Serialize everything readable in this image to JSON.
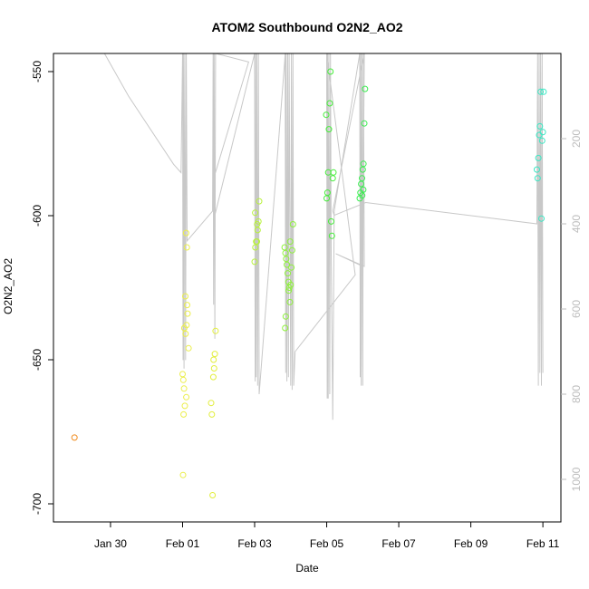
{
  "chart_data": {
    "type": "scatter",
    "title": "ATOM2 Southbound O2N2_AO2",
    "xlabel": "Date",
    "ylabel": "O2N2_AO2",
    "xlim": [
      "2020-01-28T10:00",
      "2020-02-11T12:00"
    ],
    "ylim": [
      -700,
      -550
    ],
    "x_ticks": [
      {
        "value": "2020-01-30",
        "label": "Jan 30"
      },
      {
        "value": "2020-02-01",
        "label": "Feb 01"
      },
      {
        "value": "2020-02-03",
        "label": "Feb 03"
      },
      {
        "value": "2020-02-05",
        "label": "Feb 05"
      },
      {
        "value": "2020-02-07",
        "label": "Feb 07"
      },
      {
        "value": "2020-02-09",
        "label": "Feb 09"
      },
      {
        "value": "2020-02-11",
        "label": "Feb 11"
      }
    ],
    "y_ticks": [
      -700,
      -650,
      -600,
      -550
    ],
    "secondary_axis": {
      "side": "right",
      "reversed": true,
      "lim": [
        0,
        1100
      ],
      "ticks": [
        200,
        400,
        600,
        800,
        1000
      ],
      "color": "#bdbdbd"
    },
    "grid": false,
    "marker": "open-circle",
    "points": [
      {
        "x": "2020-01-29T00:00",
        "y": -677,
        "color": "#f08a1c"
      },
      {
        "x": "2020-02-01T00:00",
        "y": -655,
        "color": "#ebee4a"
      },
      {
        "x": "2020-02-01T00:30",
        "y": -657,
        "color": "#ebee4a"
      },
      {
        "x": "2020-02-01T01:00",
        "y": -660,
        "color": "#ebee4a"
      },
      {
        "x": "2020-02-01T01:30",
        "y": -666,
        "color": "#ebee4a"
      },
      {
        "x": "2020-02-01T00:40",
        "y": -669,
        "color": "#ebee4a"
      },
      {
        "x": "2020-02-01T00:20",
        "y": -690,
        "color": "#ebee4a"
      },
      {
        "x": "2020-02-01T02:00",
        "y": -641,
        "color": "#ebee4a"
      },
      {
        "x": "2020-02-01T02:40",
        "y": -638,
        "color": "#ebee4a"
      },
      {
        "x": "2020-02-01T03:20",
        "y": -634,
        "color": "#ebee4a"
      },
      {
        "x": "2020-02-01T03:00",
        "y": -631,
        "color": "#ebee4a"
      },
      {
        "x": "2020-02-01T01:50",
        "y": -628,
        "color": "#ebee4a"
      },
      {
        "x": "2020-02-01T04:00",
        "y": -646,
        "color": "#ebee4a"
      },
      {
        "x": "2020-02-01T02:20",
        "y": -606,
        "color": "#ebee4a"
      },
      {
        "x": "2020-02-01T02:50",
        "y": -611,
        "color": "#ebee4a"
      },
      {
        "x": "2020-02-01T02:30",
        "y": -663,
        "color": "#ebee4a"
      },
      {
        "x": "2020-02-01T01:10",
        "y": -639,
        "color": "#ebee4a"
      },
      {
        "x": "2020-02-01T19:00",
        "y": -665,
        "color": "#e2ee3c"
      },
      {
        "x": "2020-02-01T19:30",
        "y": -669,
        "color": "#e2ee3c"
      },
      {
        "x": "2020-02-01T20:00",
        "y": -697,
        "color": "#e2ee3c"
      },
      {
        "x": "2020-02-01T20:30",
        "y": -656,
        "color": "#e2ee3c"
      },
      {
        "x": "2020-02-01T21:00",
        "y": -653,
        "color": "#e2ee3c"
      },
      {
        "x": "2020-02-01T21:30",
        "y": -648,
        "color": "#e2ee3c"
      },
      {
        "x": "2020-02-01T20:40",
        "y": -650,
        "color": "#e2ee3c"
      },
      {
        "x": "2020-02-01T22:00",
        "y": -640,
        "color": "#e2ee3c"
      },
      {
        "x": "2020-02-03T00:00",
        "y": -616,
        "color": "#b8f23c"
      },
      {
        "x": "2020-02-03T00:30",
        "y": -611,
        "color": "#b8f23c"
      },
      {
        "x": "2020-02-03T01:00",
        "y": -609,
        "color": "#b8f23c"
      },
      {
        "x": "2020-02-03T01:30",
        "y": -609,
        "color": "#b8f23c"
      },
      {
        "x": "2020-02-03T02:00",
        "y": -605,
        "color": "#b8f23c"
      },
      {
        "x": "2020-02-03T02:30",
        "y": -602,
        "color": "#b8f23c"
      },
      {
        "x": "2020-02-03T03:00",
        "y": -595,
        "color": "#b8f23c"
      },
      {
        "x": "2020-02-03T00:20",
        "y": -599,
        "color": "#b8f23c"
      },
      {
        "x": "2020-02-03T01:40",
        "y": -603,
        "color": "#b8f23c"
      },
      {
        "x": "2020-02-03T20:00",
        "y": -611,
        "color": "#8ef23a"
      },
      {
        "x": "2020-02-03T20:30",
        "y": -613,
        "color": "#8ef23a"
      },
      {
        "x": "2020-02-03T21:00",
        "y": -615,
        "color": "#8ef23a"
      },
      {
        "x": "2020-02-03T21:30",
        "y": -617,
        "color": "#8ef23a"
      },
      {
        "x": "2020-02-03T22:00",
        "y": -620,
        "color": "#8ef23a"
      },
      {
        "x": "2020-02-03T22:30",
        "y": -623,
        "color": "#8ef23a"
      },
      {
        "x": "2020-02-03T23:00",
        "y": -625,
        "color": "#8ef23a"
      },
      {
        "x": "2020-02-03T23:30",
        "y": -630,
        "color": "#8ef23a"
      },
      {
        "x": "2020-02-03T20:40",
        "y": -635,
        "color": "#8ef23a"
      },
      {
        "x": "2020-02-03T20:20",
        "y": -639,
        "color": "#8ef23a"
      },
      {
        "x": "2020-02-04T00:00",
        "y": -624,
        "color": "#8ef23a"
      },
      {
        "x": "2020-02-04T00:30",
        "y": -618,
        "color": "#8ef23a"
      },
      {
        "x": "2020-02-04T01:00",
        "y": -612,
        "color": "#8ef23a"
      },
      {
        "x": "2020-02-04T01:30",
        "y": -603,
        "color": "#8ef23a"
      },
      {
        "x": "2020-02-03T23:40",
        "y": -609,
        "color": "#8ef23a"
      },
      {
        "x": "2020-02-03T22:40",
        "y": -626,
        "color": "#8ef23a"
      },
      {
        "x": "2020-02-05T00:00",
        "y": -594,
        "color": "#45ee3a"
      },
      {
        "x": "2020-02-05T00:30",
        "y": -592,
        "color": "#45ee3a"
      },
      {
        "x": "2020-02-05T01:00",
        "y": -585,
        "color": "#45ee3a"
      },
      {
        "x": "2020-02-05T01:30",
        "y": -570,
        "color": "#45ee3a"
      },
      {
        "x": "2020-02-05T02:00",
        "y": -561,
        "color": "#45ee3a"
      },
      {
        "x": "2020-02-05T02:30",
        "y": -550,
        "color": "#45ee3a"
      },
      {
        "x": "2020-02-05T03:00",
        "y": -602,
        "color": "#45ee3a"
      },
      {
        "x": "2020-02-05T03:30",
        "y": -607,
        "color": "#45ee3a"
      },
      {
        "x": "2020-02-05T04:00",
        "y": -587,
        "color": "#45ee3a"
      },
      {
        "x": "2020-02-05T04:30",
        "y": -585,
        "color": "#45ee3a"
      },
      {
        "x": "2020-02-04T23:40",
        "y": -565,
        "color": "#45ee3a"
      },
      {
        "x": "2020-02-05T22:00",
        "y": -594,
        "color": "#3aee50"
      },
      {
        "x": "2020-02-05T22:30",
        "y": -592,
        "color": "#3aee50"
      },
      {
        "x": "2020-02-05T23:00",
        "y": -589,
        "color": "#3aee50"
      },
      {
        "x": "2020-02-05T23:30",
        "y": -587,
        "color": "#3aee50"
      },
      {
        "x": "2020-02-06T00:00",
        "y": -584,
        "color": "#3aee50"
      },
      {
        "x": "2020-02-06T00:30",
        "y": -582,
        "color": "#3aee50"
      },
      {
        "x": "2020-02-06T01:00",
        "y": -568,
        "color": "#3aee50"
      },
      {
        "x": "2020-02-06T01:30",
        "y": -556,
        "color": "#3aee50"
      },
      {
        "x": "2020-02-06T00:20",
        "y": -591,
        "color": "#3aee50"
      },
      {
        "x": "2020-02-05T23:40",
        "y": -593,
        "color": "#3aee50"
      },
      {
        "x": "2020-02-10T20:00",
        "y": -584,
        "color": "#3ae8c4"
      },
      {
        "x": "2020-02-10T20:30",
        "y": -587,
        "color": "#3ae8c4"
      },
      {
        "x": "2020-02-10T21:00",
        "y": -580,
        "color": "#3ae8c4"
      },
      {
        "x": "2020-02-10T21:30",
        "y": -572,
        "color": "#3ae8c4"
      },
      {
        "x": "2020-02-10T22:00",
        "y": -569,
        "color": "#3ae8c4"
      },
      {
        "x": "2020-02-10T22:30",
        "y": -557,
        "color": "#3ae8c4"
      },
      {
        "x": "2020-02-10T23:00",
        "y": -601,
        "color": "#3ae8c4"
      },
      {
        "x": "2020-02-10T23:30",
        "y": -574,
        "color": "#3ae8c4"
      },
      {
        "x": "2020-02-11T00:00",
        "y": -571,
        "color": "#3ae8c4"
      },
      {
        "x": "2020-02-11T00:30",
        "y": -557,
        "color": "#3ae8c4"
      }
    ],
    "overlay_line": {
      "color": "#c8c8c8",
      "axis": "secondary",
      "points": [
        [
          "2020-01-29T20:00",
          0
        ],
        [
          "2020-01-30T12:00",
          100
        ],
        [
          "2020-01-31T18:00",
          260
        ],
        [
          "2020-01-31T23:00",
          280
        ],
        [
          "2020-02-01T00:00",
          0
        ],
        [
          "2020-02-01T00:20",
          720
        ],
        [
          "2020-02-01T00:40",
          0
        ],
        [
          "2020-02-01T01:00",
          740
        ],
        [
          "2020-02-01T01:30",
          0
        ],
        [
          "2020-02-01T02:00",
          720
        ],
        [
          "2020-02-01T02:30",
          0
        ],
        [
          "2020-02-01T03:00",
          440
        ],
        [
          "2020-02-01T20:00",
          370
        ],
        [
          "2020-02-01T20:20",
          0
        ],
        [
          "2020-02-01T20:40",
          590
        ],
        [
          "2020-02-01T21:00",
          0
        ],
        [
          "2020-02-01T21:30",
          670
        ],
        [
          "2020-02-01T22:00",
          0
        ],
        [
          "2020-02-02T20:00",
          20
        ],
        [
          "2020-02-01T21:00",
          290
        ],
        [
          "2020-02-01T21:30",
          380
        ],
        [
          "2020-02-03T00:00",
          0
        ],
        [
          "2020-02-03T00:20",
          770
        ],
        [
          "2020-02-03T00:40",
          0
        ],
        [
          "2020-02-03T01:00",
          760
        ],
        [
          "2020-02-03T01:30",
          0
        ],
        [
          "2020-02-03T02:00",
          780
        ],
        [
          "2020-02-03T02:30",
          0
        ],
        [
          "2020-02-03T03:00",
          800
        ],
        [
          "2020-02-03T20:00",
          20
        ],
        [
          "2020-02-03T20:20",
          0
        ],
        [
          "2020-02-03T20:40",
          750
        ],
        [
          "2020-02-03T21:00",
          0
        ],
        [
          "2020-02-03T21:30",
          770
        ],
        [
          "2020-02-03T22:00",
          0
        ],
        [
          "2020-02-03T22:30",
          760
        ],
        [
          "2020-02-03T23:00",
          0
        ],
        [
          "2020-02-04T00:00",
          780
        ],
        [
          "2020-02-04T00:30",
          0
        ],
        [
          "2020-02-04T01:00",
          790
        ],
        [
          "2020-02-04T01:30",
          0
        ],
        [
          "2020-02-04T02:00",
          780
        ],
        [
          "2020-02-04T03:00",
          700
        ],
        [
          "2020-02-05T19:00",
          520
        ],
        [
          "2020-02-05T00:00",
          0
        ],
        [
          "2020-02-05T00:20",
          810
        ],
        [
          "2020-02-05T00:40",
          0
        ],
        [
          "2020-02-05T01:00",
          810
        ],
        [
          "2020-02-05T01:30",
          0
        ],
        [
          "2020-02-05T02:00",
          800
        ],
        [
          "2020-02-05T02:30",
          0
        ],
        [
          "2020-02-05T03:00",
          470
        ],
        [
          "2020-02-05T04:00",
          860
        ],
        [
          "2020-02-05T05:00",
          370
        ],
        [
          "2020-02-05T22:00",
          0
        ],
        [
          "2020-02-05T22:20",
          760
        ],
        [
          "2020-02-05T22:40",
          0
        ],
        [
          "2020-02-05T23:00",
          780
        ],
        [
          "2020-02-05T23:30",
          0
        ],
        [
          "2020-02-06T00:00",
          780
        ],
        [
          "2020-02-06T00:30",
          0
        ],
        [
          "2020-02-06T01:00",
          500
        ],
        [
          "2020-02-05T06:00",
          470
        ],
        [
          "2020-02-06T00:00",
          500
        ],
        [
          "2020-02-06T01:00",
          0
        ],
        [
          "2020-02-05T04:00",
          370
        ],
        [
          "2020-02-05T05:00",
          380
        ],
        [
          "2020-02-06T02:00",
          350
        ],
        [
          "2020-02-10T20:00",
          400
        ],
        [
          "2020-02-10T20:30",
          0
        ],
        [
          "2020-02-10T21:00",
          780
        ],
        [
          "2020-02-10T21:30",
          0
        ],
        [
          "2020-02-10T22:00",
          750
        ],
        [
          "2020-02-10T22:30",
          0
        ],
        [
          "2020-02-10T23:00",
          780
        ],
        [
          "2020-02-10T23:30",
          0
        ],
        [
          "2020-02-11T00:00",
          750
        ]
      ]
    }
  }
}
